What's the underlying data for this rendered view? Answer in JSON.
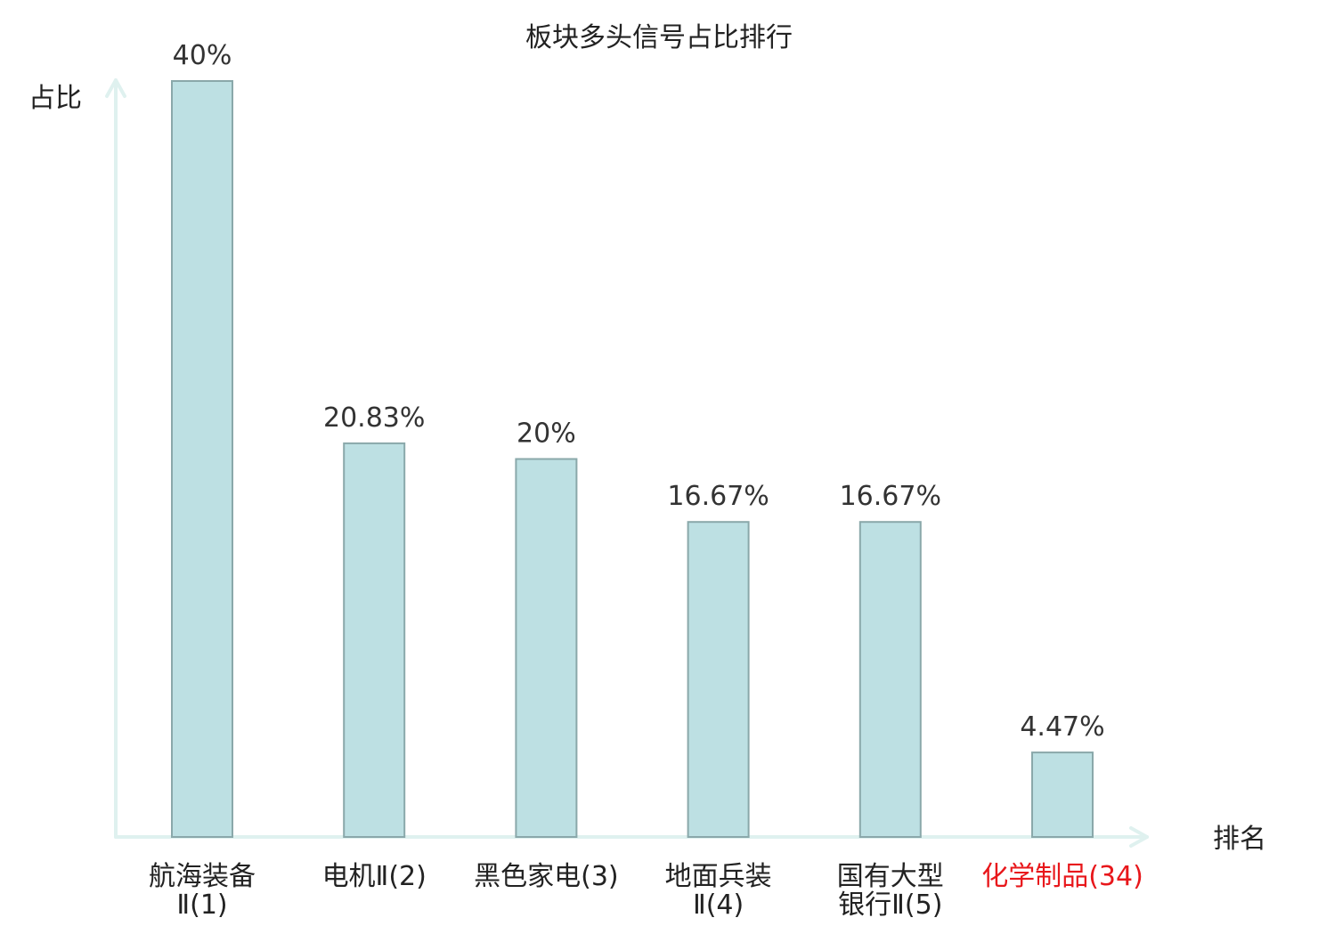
{
  "chart_data": {
    "type": "bar",
    "title": "板块多头信号占比排行",
    "xlabel": "排名",
    "ylabel": "占比",
    "categories": [
      [
        "航海装备",
        "Ⅱ(1)"
      ],
      [
        "电机Ⅱ(2)"
      ],
      [
        "黑色家电(3)"
      ],
      [
        "地面兵装",
        "Ⅱ(4)"
      ],
      [
        "国有大型",
        "银行Ⅱ(5)"
      ],
      [
        "化学制品(34)"
      ]
    ],
    "values": [
      40,
      20.83,
      20,
      16.67,
      16.67,
      4.47
    ],
    "value_labels": [
      "40%",
      "20.83%",
      "20%",
      "16.67%",
      "16.67%",
      "4.47%"
    ],
    "highlight_index": 5,
    "ylim": [
      0,
      40
    ],
    "grid": false,
    "legend": "none"
  },
  "colors": {
    "bar_fill": "#bde0e3",
    "bar_stroke": "#8aa8aa",
    "axis": "#dff1ef",
    "text": "#222222",
    "value_text": "#333333",
    "highlight": "#e8171b"
  }
}
